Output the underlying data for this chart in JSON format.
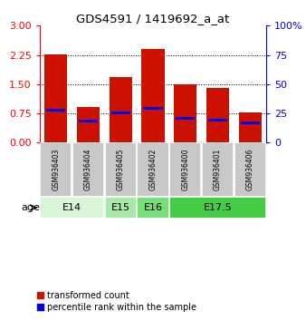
{
  "title": "GDS4591 / 1419692_a_at",
  "samples": [
    "GSM936403",
    "GSM936404",
    "GSM936405",
    "GSM936402",
    "GSM936400",
    "GSM936401",
    "GSM936406"
  ],
  "transformed_count": [
    2.27,
    0.92,
    1.67,
    2.4,
    1.5,
    1.4,
    0.77
  ],
  "percentile_rank_pct": [
    28,
    18,
    25,
    29,
    21,
    19,
    17
  ],
  "age_groups": [
    {
      "label": "E14",
      "samples": [
        0,
        1
      ],
      "color": "#d8f5d8"
    },
    {
      "label": "E15",
      "samples": [
        2
      ],
      "color": "#aae8aa"
    },
    {
      "label": "E16",
      "samples": [
        3
      ],
      "color": "#77dd77"
    },
    {
      "label": "E17.5",
      "samples": [
        4,
        5,
        6
      ],
      "color": "#44cc44"
    }
  ],
  "ylim_left": [
    0,
    3
  ],
  "ylim_right": [
    0,
    100
  ],
  "yticks_left": [
    0,
    0.75,
    1.5,
    2.25,
    3
  ],
  "yticks_right": [
    0,
    25,
    50,
    75,
    100
  ],
  "bar_color": "#cc1100",
  "dot_color": "#0000ee",
  "bar_width": 0.7,
  "bg_color": "#ffffff",
  "sample_bg": "#c8c8c8",
  "legend_items": [
    {
      "color": "#cc1100",
      "label": "transformed count"
    },
    {
      "color": "#0000ee",
      "label": "percentile rank within the sample"
    }
  ]
}
